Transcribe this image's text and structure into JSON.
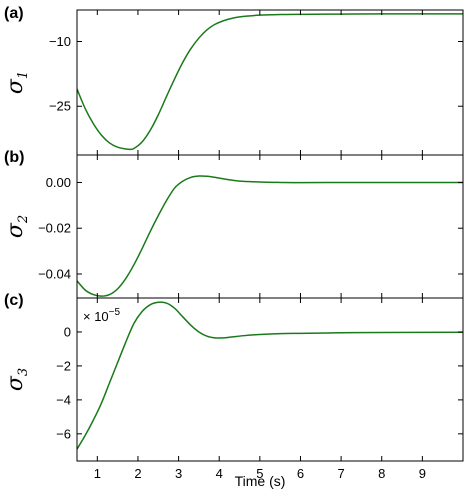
{
  "chart_data": [
    {
      "type": "line",
      "panel_label": "(b)",
      "ylabel": "σ",
      "ylabel_sub": "2",
      "xlim": [
        0.5,
        10.0
      ],
      "ylim": [
        -0.0505,
        0.012
      ],
      "yticks": [
        {
          "value": 0.0,
          "label": "0.00"
        },
        {
          "value": -0.02,
          "label": "−0.02"
        },
        {
          "value": -0.04,
          "label": "−0.04"
        }
      ],
      "series": [
        {
          "color": "#1a7a1a",
          "x": [
            0.5,
            0.7,
            0.9,
            1.1,
            1.3,
            1.5,
            1.7,
            1.9,
            2.1,
            2.3,
            2.5,
            2.7,
            2.9,
            3.1,
            3.3,
            3.5,
            3.7,
            3.9,
            4.2,
            4.5,
            5.0,
            5.5,
            6.0,
            7.0,
            8.0,
            10.0
          ],
          "y": [
            -0.043,
            -0.047,
            -0.049,
            -0.0497,
            -0.049,
            -0.0465,
            -0.042,
            -0.036,
            -0.029,
            -0.0215,
            -0.0145,
            -0.008,
            -0.0025,
            0.0005,
            0.0022,
            0.0028,
            0.0027,
            0.0022,
            0.0013,
            0.0006,
            0.0002,
            0.0,
            -0.0001,
            0.0,
            0.0,
            0.0
          ]
        }
      ]
    },
    {
      "type": "line",
      "panel_label": "(c)",
      "ylabel": "σ",
      "ylabel_sub": "3",
      "scale_note_prefix": "× 10",
      "scale_note_exp": "−5",
      "xlim": [
        0.5,
        10.0
      ],
      "ylim": [
        -7.6,
        2.0
      ],
      "yticks": [
        {
          "value": 0,
          "label": "0"
        },
        {
          "value": -2,
          "label": "−2"
        },
        {
          "value": -4,
          "label": "−4"
        },
        {
          "value": -6,
          "label": "−6"
        }
      ],
      "xticks": [
        {
          "value": 1,
          "label": "1"
        },
        {
          "value": 2,
          "label": "2"
        },
        {
          "value": 3,
          "label": "3"
        },
        {
          "value": 4,
          "label": "4"
        },
        {
          "value": 5,
          "label": "5"
        },
        {
          "value": 6,
          "label": "6"
        },
        {
          "value": 7,
          "label": "7"
        },
        {
          "value": 8,
          "label": "8"
        },
        {
          "value": 9,
          "label": "9"
        }
      ],
      "xlabel": "Time (s)",
      "series": [
        {
          "color": "#1a7a1a",
          "x": [
            0.5,
            0.7,
            0.9,
            1.1,
            1.3,
            1.5,
            1.7,
            1.9,
            2.1,
            2.3,
            2.5,
            2.7,
            2.9,
            3.1,
            3.3,
            3.5,
            3.7,
            3.9,
            4.1,
            4.3,
            4.6,
            5.0,
            5.5,
            6.0,
            7.0,
            8.0,
            10.0
          ],
          "y": [
            -6.9,
            -6.1,
            -5.2,
            -4.2,
            -3.0,
            -1.8,
            -0.6,
            0.5,
            1.2,
            1.6,
            1.75,
            1.7,
            1.4,
            0.9,
            0.4,
            0.0,
            -0.25,
            -0.35,
            -0.35,
            -0.3,
            -0.22,
            -0.15,
            -0.1,
            -0.08,
            -0.05,
            -0.03,
            -0.02
          ]
        }
      ]
    },
    {
      "type": "line",
      "panel_label": "(a)",
      "ylabel": "σ",
      "ylabel_sub": "1",
      "xlim": [
        0.5,
        10.0
      ],
      "ylim": [
        -36.3,
        -2.7
      ],
      "yticks": [
        {
          "value": -10,
          "label": "−10"
        },
        {
          "value": -25,
          "label": "−25"
        }
      ],
      "series": [
        {
          "color": "#1a7a1a",
          "x": [
            0.5,
            0.7,
            0.9,
            1.1,
            1.3,
            1.5,
            1.7,
            1.8,
            1.9,
            2.1,
            2.3,
            2.5,
            2.7,
            2.9,
            3.1,
            3.3,
            3.5,
            3.7,
            3.9,
            4.2,
            4.5,
            5.0,
            5.5,
            6.0,
            7.0,
            8.0,
            10.0
          ],
          "y": [
            -21.0,
            -25.5,
            -29.0,
            -31.7,
            -33.5,
            -34.5,
            -34.9,
            -35.0,
            -34.8,
            -33.3,
            -30.6,
            -27.0,
            -22.8,
            -18.7,
            -14.9,
            -11.7,
            -9.2,
            -7.3,
            -6.0,
            -4.9,
            -4.3,
            -3.9,
            -3.75,
            -3.7,
            -3.65,
            -3.6,
            -3.6
          ]
        }
      ]
    }
  ]
}
